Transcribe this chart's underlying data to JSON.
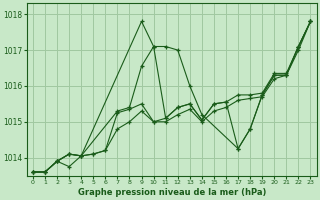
{
  "title": "Graphe pression niveau de la mer (hPa)",
  "background_color": "#c8e8c8",
  "plot_bg_color": "#c8e8c8",
  "grid_color": "#a0c8a0",
  "line_color": "#1a5c1a",
  "xlim": [
    -0.5,
    23.5
  ],
  "ylim": [
    1013.5,
    1018.3
  ],
  "yticks": [
    1014,
    1015,
    1016,
    1017,
    1018
  ],
  "xticks": [
    0,
    1,
    2,
    3,
    4,
    5,
    6,
    7,
    8,
    9,
    10,
    11,
    12,
    13,
    14,
    15,
    16,
    17,
    18,
    19,
    20,
    21,
    22,
    23
  ],
  "series": [
    {
      "x": [
        0,
        1,
        2,
        3,
        4,
        9,
        10,
        11,
        12,
        13,
        14,
        17,
        18,
        19,
        20,
        21,
        22,
        23
      ],
      "y": [
        1013.6,
        1013.6,
        1013.9,
        1013.75,
        1014.05,
        1017.8,
        1017.1,
        1017.1,
        1017.0,
        1016.0,
        1015.2,
        1014.25,
        1014.8,
        1015.75,
        1016.3,
        1016.3,
        1017.1,
        1017.8
      ]
    },
    {
      "x": [
        0,
        1,
        2,
        3,
        4,
        7,
        8,
        9,
        10,
        11,
        12,
        13,
        14,
        15,
        16,
        17,
        18,
        19,
        20,
        21,
        22,
        23
      ],
      "y": [
        1013.6,
        1013.6,
        1013.9,
        1014.1,
        1014.05,
        1015.3,
        1015.4,
        1016.55,
        1017.1,
        1015.1,
        1015.4,
        1015.5,
        1015.05,
        1015.5,
        1015.55,
        1014.25,
        1014.8,
        1015.75,
        1016.3,
        1016.3,
        1017.1,
        1017.8
      ]
    },
    {
      "x": [
        0,
        1,
        2,
        3,
        4,
        5,
        6,
        7,
        8,
        9,
        10,
        11,
        12,
        13,
        14,
        15,
        16,
        17,
        18,
        19,
        20,
        21,
        22,
        23
      ],
      "y": [
        1013.6,
        1013.6,
        1013.9,
        1014.1,
        1014.05,
        1014.1,
        1014.2,
        1015.25,
        1015.35,
        1015.5,
        1015.0,
        1015.1,
        1015.4,
        1015.5,
        1015.05,
        1015.5,
        1015.55,
        1015.75,
        1015.75,
        1015.8,
        1016.35,
        1016.35,
        1017.1,
        1017.8
      ]
    },
    {
      "x": [
        0,
        1,
        2,
        3,
        4,
        5,
        6,
        7,
        8,
        9,
        10,
        11,
        12,
        13,
        14,
        15,
        16,
        17,
        18,
        19,
        20,
        21,
        22,
        23
      ],
      "y": [
        1013.6,
        1013.6,
        1013.9,
        1014.1,
        1014.05,
        1014.1,
        1014.2,
        1014.8,
        1015.0,
        1015.3,
        1015.0,
        1015.0,
        1015.2,
        1015.35,
        1015.0,
        1015.3,
        1015.4,
        1015.6,
        1015.65,
        1015.7,
        1016.2,
        1016.3,
        1017.0,
        1017.8
      ]
    }
  ]
}
